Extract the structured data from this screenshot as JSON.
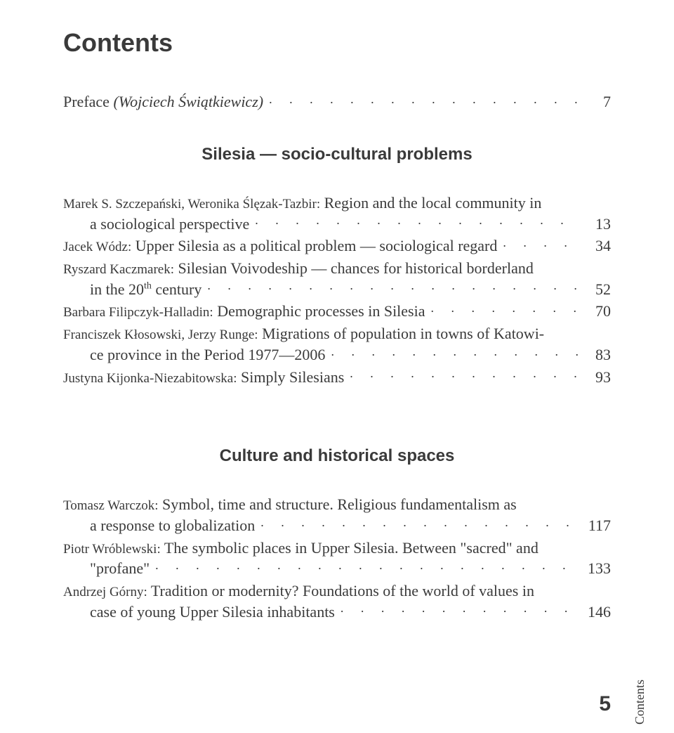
{
  "title": "Contents",
  "preface": {
    "label": "Preface",
    "author": "(Wojciech Świątkiewicz)",
    "page": "7"
  },
  "sections": [
    {
      "heading": "Silesia — socio-cultural problems",
      "entries": [
        {
          "author": "Marek S. Szczepański, Weronika Ślęzak-Tazbir:",
          "title_line1": "Region and the local community in",
          "title_line2": "a sociological perspective",
          "page": "13"
        },
        {
          "author": "Jacek Wódz:",
          "title_line1": "Upper Silesia as a political problem — sociological regard",
          "title_line2": "",
          "page": "34"
        },
        {
          "author": "Ryszard Kaczmarek:",
          "title_line1": "Silesian Voivodeship — chances for historical borderland",
          "title_line2_pre": "in the 20",
          "title_line2_sup": "th",
          "title_line2_post": " century",
          "page": "52"
        },
        {
          "author": "Barbara Filipczyk-Halladin:",
          "title_line1": "Demographic processes in Silesia",
          "title_line2": "",
          "page": "70"
        },
        {
          "author": "Franciszek Kłosowski, Jerzy Runge:",
          "title_line1": "Migrations of population in towns of Katowi-",
          "title_line2": "ce province in the Period 1977—2006",
          "page": "83"
        },
        {
          "author": "Justyna Kijonka-Niezabitowska:",
          "title_line1": "Simply Silesians",
          "title_line2": "",
          "page": "93"
        }
      ]
    },
    {
      "heading": "Culture and historical spaces",
      "entries": [
        {
          "author": "Tomasz Warczok:",
          "title_line1": "Symbol, time and structure. Religious fundamentalism as",
          "title_line2": "a response to globalization",
          "page": "117"
        },
        {
          "author": "Piotr Wróblewski:",
          "title_line1": "The symbolic places in Upper Silesia. Between \"sacred\" and",
          "title_line2": "\"profane\"",
          "page": "133"
        },
        {
          "author": "Andrzej Górny:",
          "title_line1": "Tradition or modernity? Foundations of the world of values in",
          "title_line2": "case of young Upper Silesia inhabitants",
          "page": "146"
        }
      ]
    }
  ],
  "side_label": "Contents",
  "footer_page": "5",
  "colors": {
    "text": "#3a3a3a",
    "background": "#ffffff"
  },
  "typography": {
    "title_fontsize": 36,
    "section_fontsize": 24,
    "body_fontsize": 22,
    "author_fontsize": 19,
    "footer_fontsize": 30
  }
}
